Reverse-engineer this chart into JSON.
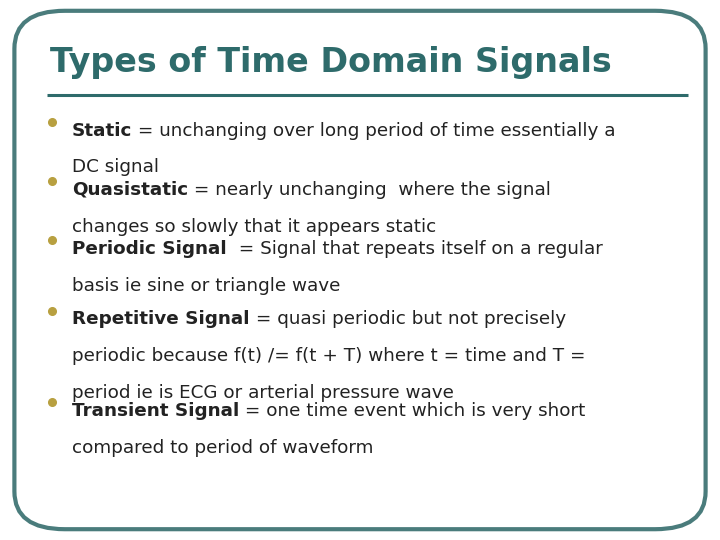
{
  "title": "Types of Time Domain Signals",
  "title_color": "#2E6B6B",
  "title_fontsize": 24,
  "line_color": "#2E6B6B",
  "background_color": "#FFFFFF",
  "border_color": "#4A7C7C",
  "bullet_color": "#B8A040",
  "body_color": "#222222",
  "body_fontsize": 13.2,
  "bullets": [
    {
      "bold_part": "Static",
      "normal_part": " = unchanging over long period of time essentially a\nDC signal"
    },
    {
      "bold_part": "Quasistatic",
      "normal_part": " = nearly unchanging  where the signal\nchanges so slowly that it appears static"
    },
    {
      "bold_part": "Periodic Signal",
      "normal_part": "  = Signal that repeats itself on a regular\nbasis ie sine or triangle wave"
    },
    {
      "bold_part": "Repetitive Signal",
      "normal_part": " = quasi periodic but not precisely\nperiodic because f(t) /= f(t + T) where t = time and T =\nperiod ie is ECG or arterial pressure wave"
    },
    {
      "bold_part": "Transient Signal",
      "normal_part": " = one time event which is very short\ncompared to period of waveform"
    }
  ]
}
